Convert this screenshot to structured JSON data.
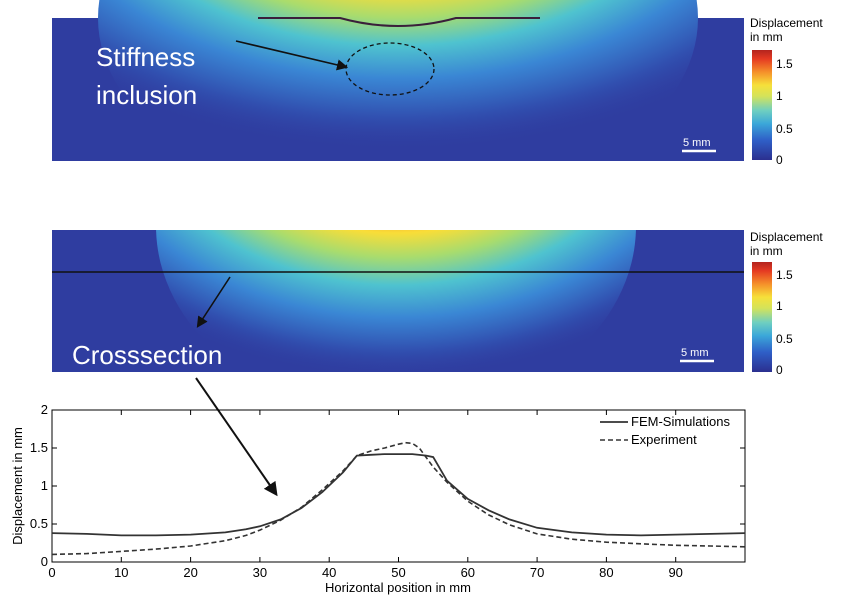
{
  "top_panel": {
    "annotation_line1": "Stiffness",
    "annotation_line2": "inclusion",
    "scale_label": "5 mm",
    "colorbar": {
      "title_line1": "Displacement",
      "title_line2": "in mm",
      "ticks": [
        "1.5",
        "1",
        "0.5",
        "0"
      ]
    }
  },
  "middle_panel": {
    "annotation": "Crosssection",
    "scale_label": "5 mm",
    "colorbar": {
      "title_line1": "Displacement",
      "title_line2": "in mm",
      "ticks": [
        "1.5",
        "1",
        "0.5",
        "0"
      ]
    }
  },
  "colors": {
    "map_background": "#2f3da0",
    "line_color": "#333333"
  },
  "chart_data": {
    "type": "line",
    "title": "",
    "xlabel": "Horizontal position in mm",
    "ylabel": "Displacement in mm",
    "xlim": [
      0,
      100
    ],
    "ylim": [
      0,
      2
    ],
    "x_ticks": [
      "0",
      "10",
      "20",
      "30",
      "40",
      "50",
      "60",
      "70",
      "80",
      "90"
    ],
    "y_ticks": [
      "0",
      "0.5",
      "1",
      "1.5",
      "2"
    ],
    "legend_position": "top-right",
    "series": [
      {
        "name": "FEM-Simulations",
        "style": "solid",
        "x": [
          0,
          5,
          10,
          15,
          20,
          25,
          28,
          30,
          33,
          36,
          39,
          42,
          44,
          46,
          48,
          50,
          52,
          54,
          55,
          57,
          60,
          63,
          66,
          70,
          75,
          80,
          85,
          90,
          95,
          100
        ],
        "y": [
          0.38,
          0.37,
          0.35,
          0.35,
          0.36,
          0.39,
          0.43,
          0.47,
          0.56,
          0.71,
          0.92,
          1.18,
          1.4,
          1.41,
          1.42,
          1.42,
          1.42,
          1.4,
          1.38,
          1.07,
          0.83,
          0.68,
          0.56,
          0.45,
          0.39,
          0.36,
          0.35,
          0.36,
          0.37,
          0.38
        ]
      },
      {
        "name": "Experiment",
        "style": "dashed",
        "x": [
          0,
          5,
          10,
          15,
          20,
          25,
          28,
          30,
          33,
          36,
          39,
          42,
          44,
          46,
          48,
          50,
          51,
          52,
          53,
          55,
          57,
          60,
          63,
          66,
          70,
          75,
          80,
          85,
          90,
          95,
          100
        ],
        "y": [
          0.1,
          0.11,
          0.14,
          0.17,
          0.21,
          0.28,
          0.35,
          0.42,
          0.55,
          0.72,
          0.95,
          1.2,
          1.4,
          1.46,
          1.5,
          1.55,
          1.57,
          1.56,
          1.5,
          1.25,
          1.05,
          0.8,
          0.62,
          0.49,
          0.37,
          0.3,
          0.26,
          0.24,
          0.22,
          0.21,
          0.2
        ]
      }
    ]
  }
}
